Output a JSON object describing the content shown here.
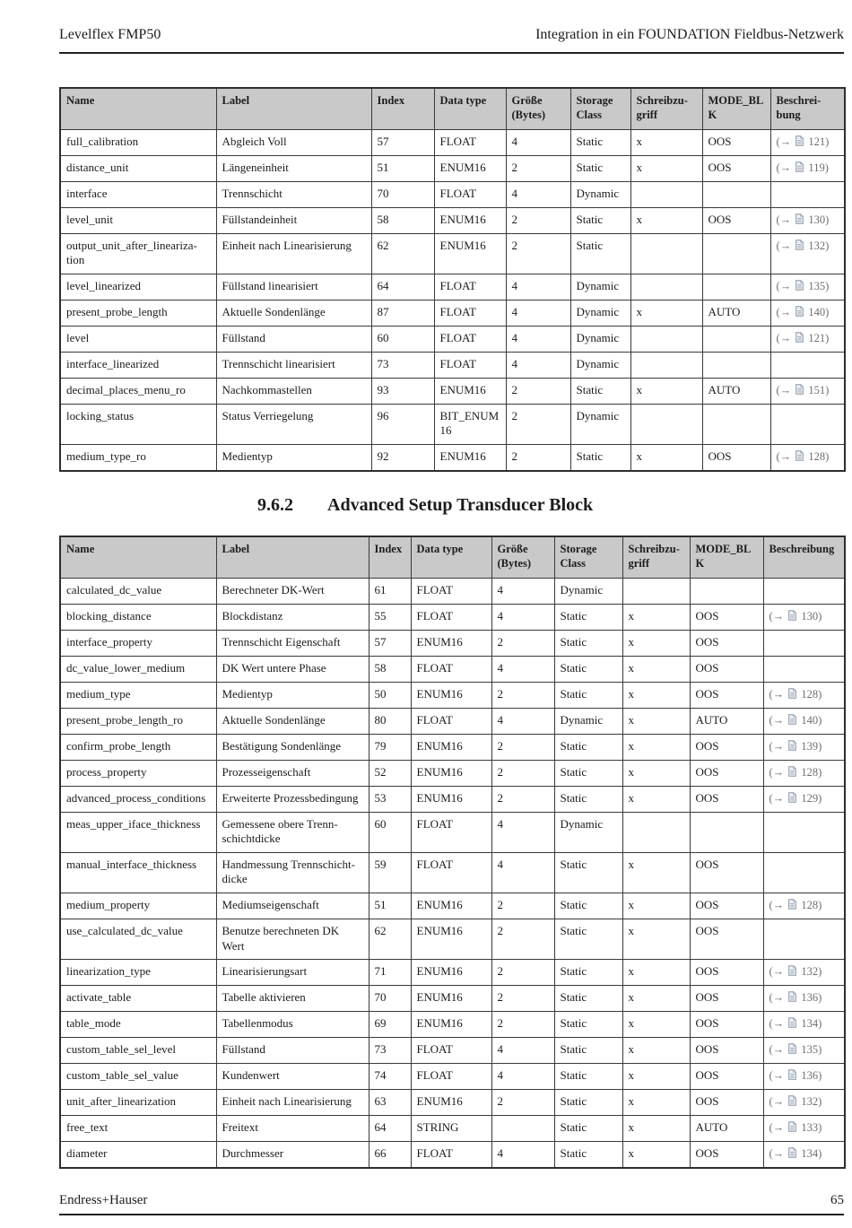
{
  "page": {
    "header_left": "Levelflex FMP50",
    "header_right": "Integration in ein FOUNDATION Fieldbus-Netzwerk",
    "footer_left": "Endress+Hauser",
    "page_number": "65"
  },
  "section": {
    "number": "9.6.2",
    "title": "Advanced Setup Transducer Block"
  },
  "ref_format": {
    "open": "(",
    "arrow": "→",
    "close": ")",
    "icon": "page-icon"
  },
  "columns": [
    "Name",
    "Label",
    "Index",
    "Data type",
    "Größe (Bytes)",
    "Storage Class",
    "Schreibzu­griff",
    "MODE_BLK",
    "Beschrei­bung"
  ],
  "table1": {
    "rows": [
      [
        "full_calibration",
        "Abgleich Voll",
        "57",
        "FLOAT",
        "4",
        "Static",
        "x",
        "OOS",
        "121"
      ],
      [
        "distance_unit",
        "Längeneinheit",
        "51",
        "ENUM16",
        "2",
        "Static",
        "x",
        "OOS",
        "119"
      ],
      [
        "interface",
        "Trennschicht",
        "70",
        "FLOAT",
        "4",
        "Dynamic",
        "",
        "",
        ""
      ],
      [
        "level_unit",
        "Füllstandeinheit",
        "58",
        "ENUM16",
        "2",
        "Static",
        "x",
        "OOS",
        "130"
      ],
      [
        "output_unit_after_lineariza­tion",
        "Einheit nach Linearisierung",
        "62",
        "ENUM16",
        "2",
        "Static",
        "",
        "",
        "132"
      ],
      [
        "level_linearized",
        "Füllstand linearisiert",
        "64",
        "FLOAT",
        "4",
        "Dynamic",
        "",
        "",
        "135"
      ],
      [
        "present_probe_length",
        "Aktuelle Sondenlänge",
        "87",
        "FLOAT",
        "4",
        "Dynamic",
        "x",
        "AUTO",
        "140"
      ],
      [
        "level",
        "Füllstand",
        "60",
        "FLOAT",
        "4",
        "Dynamic",
        "",
        "",
        "121"
      ],
      [
        "interface_linearized",
        "Trennschicht linearisiert",
        "73",
        "FLOAT",
        "4",
        "Dynamic",
        "",
        "",
        ""
      ],
      [
        "decimal_places_menu_ro",
        "Nachkommastellen",
        "93",
        "ENUM16",
        "2",
        "Static",
        "x",
        "AUTO",
        "151"
      ],
      [
        "locking_status",
        "Status Verriegelung",
        "96",
        "BIT_ENUM16",
        "2",
        "Dynamic",
        "",
        "",
        ""
      ],
      [
        "medium_type_ro",
        "Medientyp",
        "92",
        "ENUM16",
        "2",
        "Static",
        "x",
        "OOS",
        "128"
      ]
    ]
  },
  "table2": {
    "rows": [
      [
        "calculated_dc_value",
        "Berechneter DK-Wert",
        "61",
        "FLOAT",
        "4",
        "Dynamic",
        "",
        "",
        ""
      ],
      [
        "blocking_distance",
        "Blockdistanz",
        "55",
        "FLOAT",
        "4",
        "Static",
        "x",
        "OOS",
        "130"
      ],
      [
        "interface_property",
        "Trennschicht Eigenschaft",
        "57",
        "ENUM16",
        "2",
        "Static",
        "x",
        "OOS",
        ""
      ],
      [
        "dc_value_lower_medium",
        "DK Wert untere Phase",
        "58",
        "FLOAT",
        "4",
        "Static",
        "x",
        "OOS",
        ""
      ],
      [
        "medium_type",
        "Medientyp",
        "50",
        "ENUM16",
        "2",
        "Static",
        "x",
        "OOS",
        "128"
      ],
      [
        "present_probe_length_ro",
        "Aktuelle Sondenlänge",
        "80",
        "FLOAT",
        "4",
        "Dynamic",
        "x",
        "AUTO",
        "140"
      ],
      [
        "confirm_probe_length",
        "Bestätigung Sondenlänge",
        "79",
        "ENUM16",
        "2",
        "Static",
        "x",
        "OOS",
        "139"
      ],
      [
        "process_property",
        "Prozesseigenschaft",
        "52",
        "ENUM16",
        "2",
        "Static",
        "x",
        "OOS",
        "128"
      ],
      [
        "advanced_process_conditions",
        "Erweiterte Prozessbedingung",
        "53",
        "ENUM16",
        "2",
        "Static",
        "x",
        "OOS",
        "129"
      ],
      [
        "meas_upper_iface_thickness",
        "Gemessene obere Trenn­schichtdicke",
        "60",
        "FLOAT",
        "4",
        "Dynamic",
        "",
        "",
        ""
      ],
      [
        "manual_interface_thickness",
        "Handmessung Trennschicht­dicke",
        "59",
        "FLOAT",
        "4",
        "Static",
        "x",
        "OOS",
        ""
      ],
      [
        "medium_property",
        "Mediumseigenschaft",
        "51",
        "ENUM16",
        "2",
        "Static",
        "x",
        "OOS",
        "128"
      ],
      [
        "use_calculated_dc_value",
        "Benutze berechneten DK Wert",
        "62",
        "ENUM16",
        "2",
        "Static",
        "x",
        "OOS",
        ""
      ],
      [
        "linearization_type",
        "Linearisierungsart",
        "71",
        "ENUM16",
        "2",
        "Static",
        "x",
        "OOS",
        "132"
      ],
      [
        "activate_table",
        "Tabelle aktivieren",
        "70",
        "ENUM16",
        "2",
        "Static",
        "x",
        "OOS",
        "136"
      ],
      [
        "table_mode",
        "Tabellenmodus",
        "69",
        "ENUM16",
        "2",
        "Static",
        "x",
        "OOS",
        "134"
      ],
      [
        "custom_table_sel_level",
        "Füllstand",
        "73",
        "FLOAT",
        "4",
        "Static",
        "x",
        "OOS",
        "135"
      ],
      [
        "custom_table_sel_value",
        "Kundenwert",
        "74",
        "FLOAT",
        "4",
        "Static",
        "x",
        "OOS",
        "136"
      ],
      [
        "unit_after_linearization",
        "Einheit nach Linearisierung",
        "63",
        "ENUM16",
        "2",
        "Static",
        "x",
        "OOS",
        "132"
      ],
      [
        "free_text",
        "Freitext",
        "64",
        "STRING",
        "",
        "Static",
        "x",
        "AUTO",
        "133"
      ],
      [
        "diameter",
        "Durchmesser",
        "66",
        "FLOAT",
        "4",
        "Static",
        "x",
        "OOS",
        "134"
      ]
    ]
  }
}
